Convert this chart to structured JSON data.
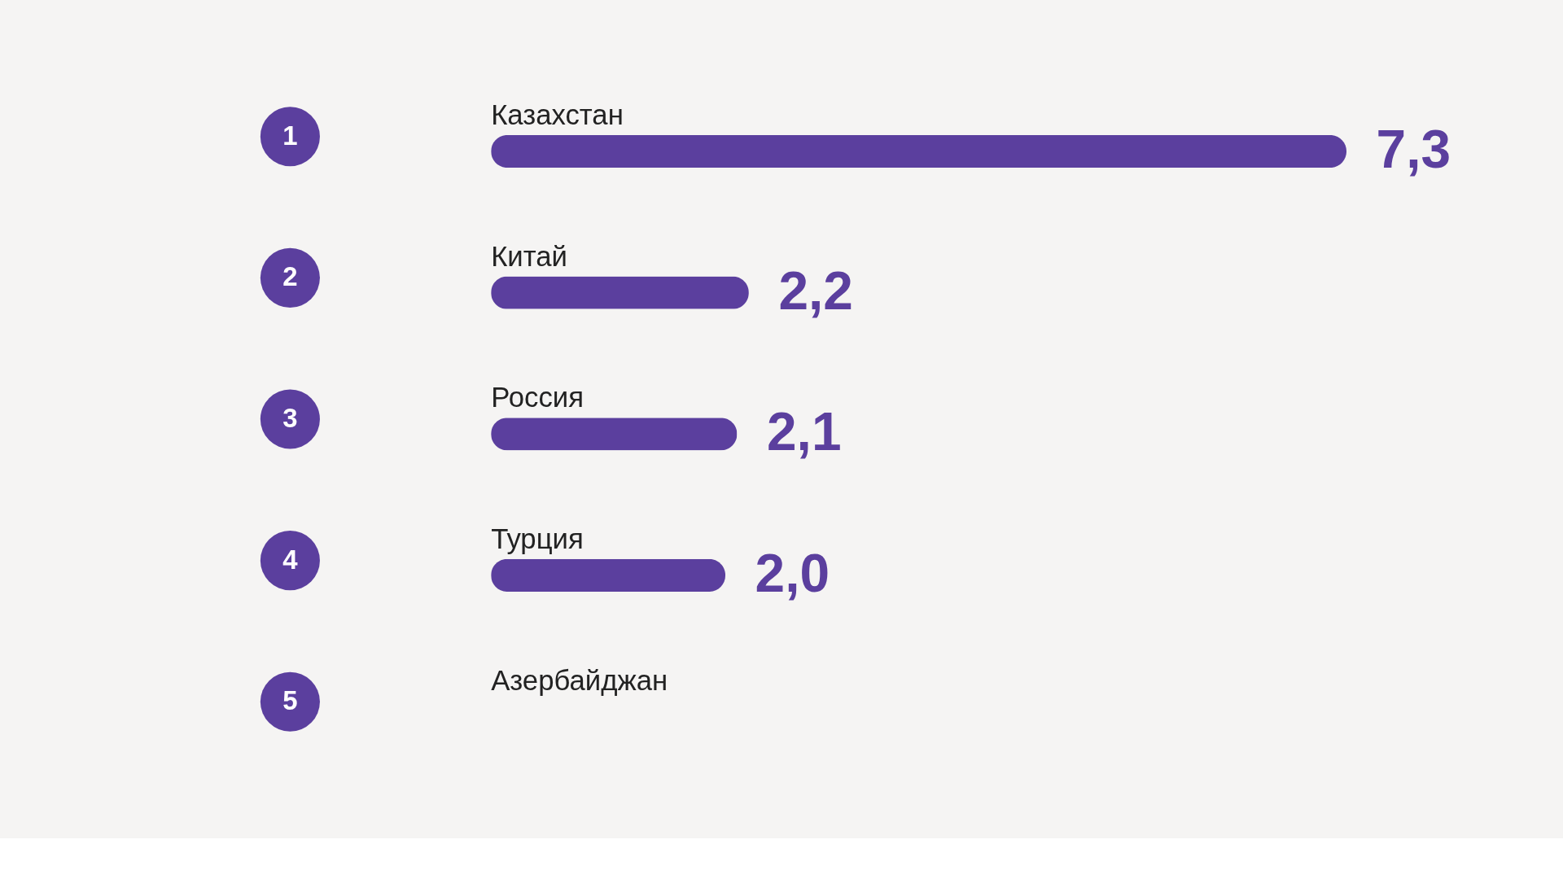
{
  "chart_data": {
    "type": "bar",
    "orientation": "horizontal",
    "categories": [
      "Казахстан",
      "Китай",
      "Россия",
      "Турция",
      "Азербайджан"
    ],
    "series": [
      {
        "color": "#5b3f9e",
        "values": [
          7.3,
          2.2,
          2.1,
          2.0,
          null
        ],
        "value_labels": [
          "7,3",
          "2,2",
          "2,1",
          "2,0",
          null
        ]
      }
    ],
    "annotations": [
      "1",
      "2",
      "3",
      "4",
      "5"
    ],
    "grid": false
  }
}
